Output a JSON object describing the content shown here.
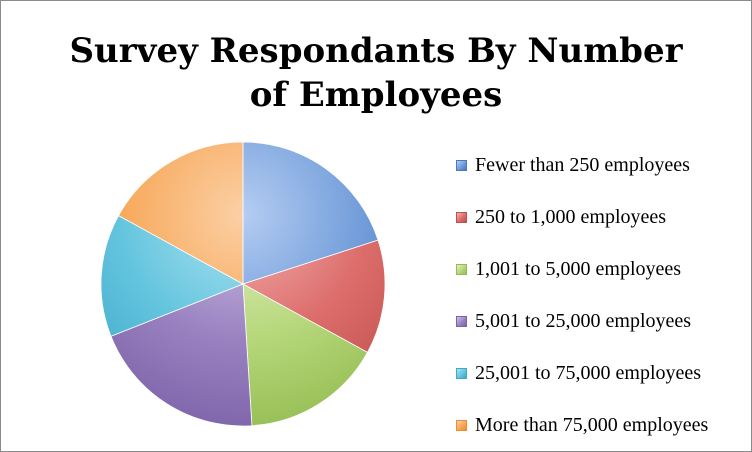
{
  "chart_data": {
    "type": "pie",
    "title": "Survey Respondants By Number\nof Employees",
    "categories": [
      "Fewer than 250 employees",
      "250 to 1,000 employees",
      "1,001 to 5,000 employees",
      "5,001 to 25,000 employees",
      "25,001 to 75,000 employees",
      "More than 75,000 employees"
    ],
    "values": [
      20,
      13,
      16,
      20,
      14,
      17
    ],
    "legend_position": "right",
    "colors": [
      "#6f9bd9",
      "#dc6d6b",
      "#b6d77a",
      "#9a82c1",
      "#63c4de",
      "#f7a85a"
    ],
    "colors_light": [
      "#b5cdf2",
      "#f3b3b2",
      "#e3f0c6",
      "#cdc2e4",
      "#b0e4f1",
      "#fbd0a5"
    ],
    "colors_dark": [
      "#4a78c0",
      "#c0504d",
      "#94bc52",
      "#7c62a8",
      "#3fa9c9",
      "#f08b2e"
    ]
  }
}
